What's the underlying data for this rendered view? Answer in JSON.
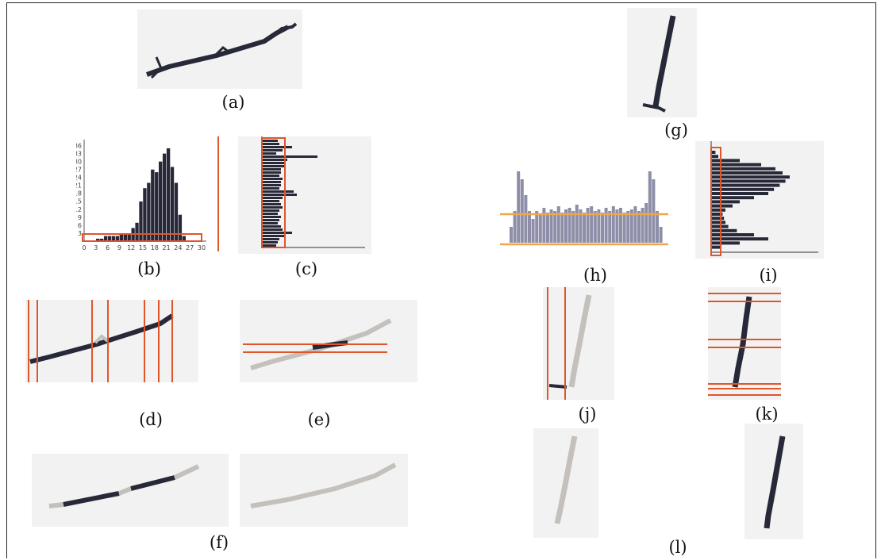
{
  "captions": {
    "a": "(a)",
    "b": "(b)",
    "c": "(c)",
    "d": "(d)",
    "e": "(e)",
    "f": "(f)",
    "g": "(g)",
    "h": "(h)",
    "i": "(i)",
    "j": "(j)",
    "k": "(k)",
    "l": "(l)"
  },
  "histogram_b": {
    "x_ticks": [
      "0",
      "3",
      "6",
      "9",
      "12",
      "15",
      "18",
      "21",
      "24",
      "27",
      "30"
    ],
    "y_ticks": [
      "3",
      "6",
      "9",
      "12",
      "15",
      "18",
      "21",
      "24",
      "27",
      "30",
      "33",
      "36"
    ],
    "values": [
      0,
      0,
      1,
      1,
      2,
      2,
      2,
      2,
      3,
      3,
      3,
      5,
      7,
      15,
      20,
      22,
      27,
      26,
      30,
      33,
      35,
      28,
      22,
      10,
      2,
      0,
      0,
      0
    ]
  },
  "colors": {
    "stroke": "#272838",
    "faded": "#c4c0bc",
    "red": "#e0562b",
    "orange": "#f0a64a",
    "panel": "#f2f2f2"
  }
}
